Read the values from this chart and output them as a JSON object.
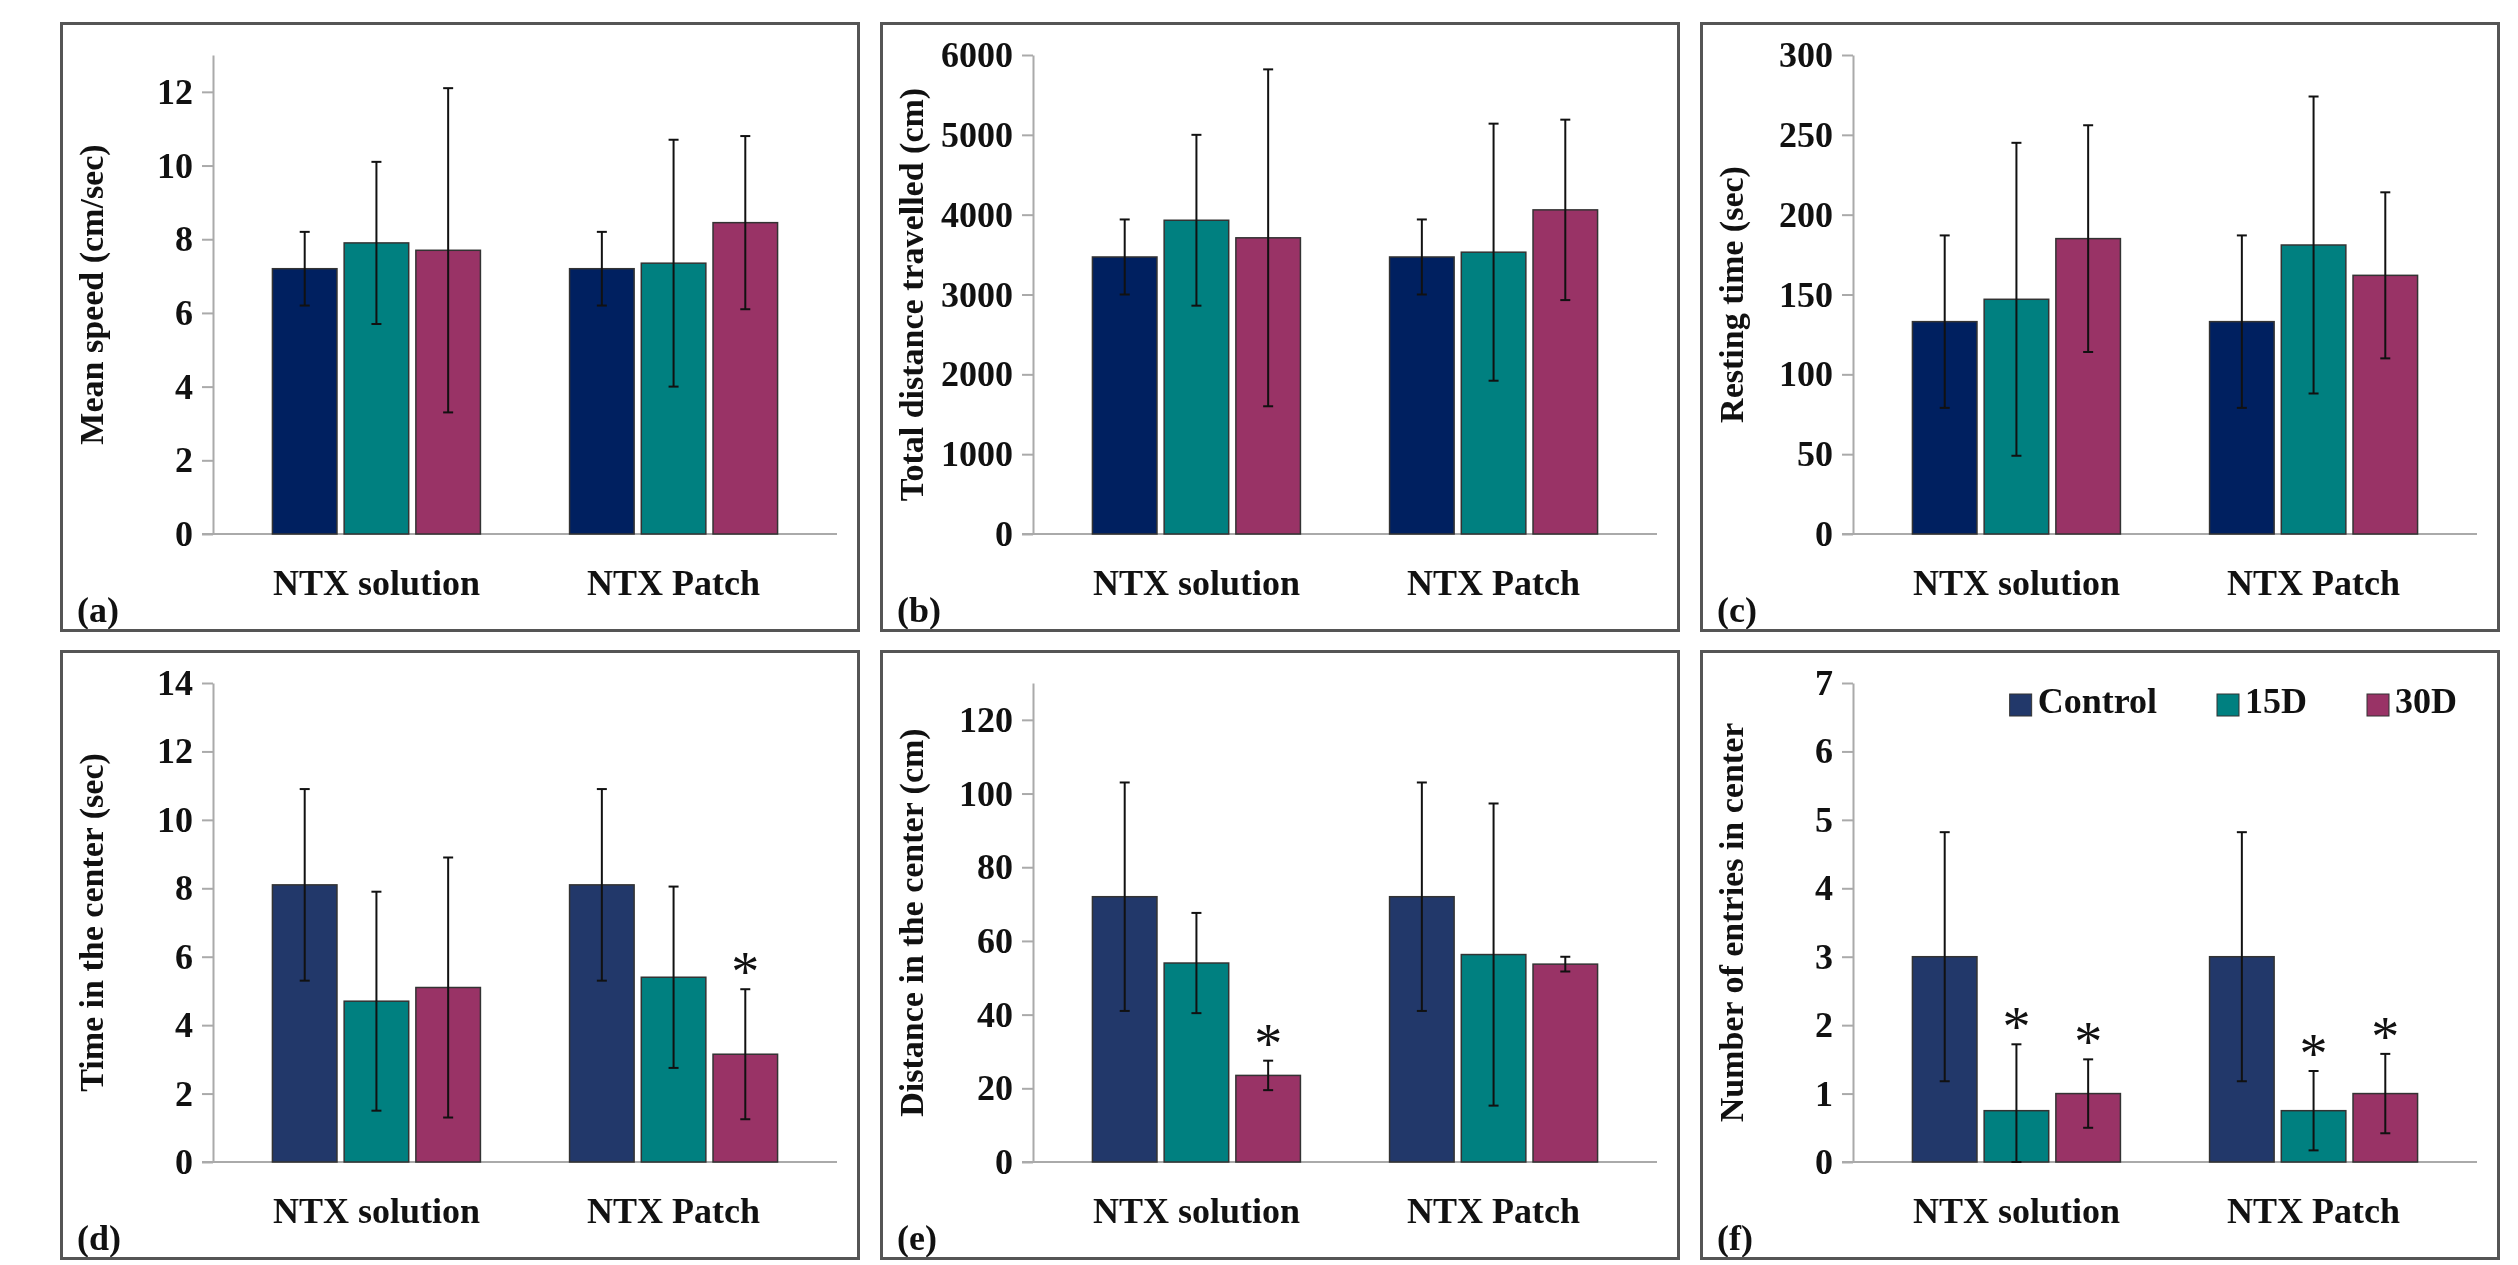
{
  "chart_data": [
    {
      "type": "bar",
      "categories": [
        "NTX solution",
        "NTX Patch"
      ],
      "ylabel": "Mean speed (cm/sec)",
      "ylim": [
        0,
        13
      ],
      "yticks": [
        0,
        2,
        4,
        6,
        8,
        10,
        12
      ],
      "grid": false,
      "legend": false,
      "annotations": [
        "(a)"
      ],
      "series": [
        {
          "color": "#002060",
          "values": [
            7.2,
            7.2
          ],
          "errors": [
            1.0,
            1.0
          ]
        },
        {
          "color": "#008080",
          "values": [
            7.9,
            7.35
          ],
          "errors": [
            2.2,
            3.35
          ]
        },
        {
          "color": "#993366",
          "values": [
            7.7,
            8.45
          ],
          "errors": [
            4.4,
            2.35
          ]
        }
      ]
    },
    {
      "type": "bar",
      "categories": [
        "NTX solution",
        "NTX Patch"
      ],
      "ylabel": "Total distance travelled (cm)",
      "ylim": [
        0,
        6000
      ],
      "yticks": [
        0,
        1000,
        2000,
        3000,
        4000,
        5000,
        6000
      ],
      "grid": false,
      "legend": false,
      "annotations": [
        "(b)"
      ],
      "series": [
        {
          "color": "#002060",
          "values": [
            3470,
            3470
          ],
          "errors": [
            470,
            470
          ]
        },
        {
          "color": "#008080",
          "values": [
            3930,
            3530
          ],
          "errors": [
            1070,
            1610
          ]
        },
        {
          "color": "#993366",
          "values": [
            3710,
            4060
          ],
          "errors": [
            2110,
            1130
          ]
        }
      ]
    },
    {
      "type": "bar",
      "categories": [
        "NTX solution",
        "NTX Patch"
      ],
      "ylabel": "Resting time (sec)",
      "ylim": [
        0,
        300
      ],
      "yticks": [
        0,
        50,
        100,
        150,
        200,
        250,
        300
      ],
      "grid": false,
      "legend": false,
      "annotations": [
        "(c)"
      ],
      "series": [
        {
          "color": "#002060",
          "values": [
            133,
            133
          ],
          "errors": [
            54,
            54
          ]
        },
        {
          "color": "#008080",
          "values": [
            147,
            181
          ],
          "errors": [
            98,
            93
          ]
        },
        {
          "color": "#993366",
          "values": [
            185,
            162
          ],
          "errors": [
            71,
            52
          ]
        }
      ]
    },
    {
      "type": "bar",
      "categories": [
        "NTX solution",
        "NTX Patch"
      ],
      "ylabel": "Time in the center (sec)",
      "ylim": [
        0,
        14
      ],
      "yticks": [
        0,
        2,
        4,
        6,
        8,
        10,
        12,
        14
      ],
      "grid": false,
      "legend": false,
      "annotations": [
        "(d)"
      ],
      "series": [
        {
          "color": "#22386a",
          "values": [
            8.1,
            8.1
          ],
          "errors": [
            2.8,
            2.8
          ]
        },
        {
          "color": "#008080",
          "values": [
            4.7,
            5.4
          ],
          "errors": [
            3.2,
            2.65
          ]
        },
        {
          "color": "#993366",
          "values": [
            5.1,
            3.15
          ],
          "errors": [
            3.8,
            1.9
          ],
          "value_labels": [
            null,
            "*"
          ]
        }
      ]
    },
    {
      "type": "bar",
      "categories": [
        "NTX solution",
        "NTX Patch"
      ],
      "ylabel": "Distance in the center (cm)",
      "ylim": [
        0,
        130
      ],
      "yticks": [
        0,
        20,
        40,
        60,
        80,
        100,
        120
      ],
      "grid": false,
      "legend": false,
      "annotations": [
        "(e)"
      ],
      "series": [
        {
          "color": "#22386a",
          "values": [
            72,
            72
          ],
          "errors": [
            31,
            31
          ]
        },
        {
          "color": "#008080",
          "values": [
            54,
            56.3
          ],
          "errors": [
            13.6,
            41
          ]
        },
        {
          "color": "#993366",
          "values": [
            23.5,
            53.7
          ],
          "errors": [
            4,
            2
          ],
          "value_labels": [
            "*",
            null
          ]
        }
      ]
    },
    {
      "type": "bar",
      "categories": [
        "NTX solution",
        "NTX Patch"
      ],
      "ylabel": "Number of entries in center",
      "ylim": [
        0,
        7
      ],
      "yticks": [
        0,
        1,
        2,
        3,
        4,
        5,
        6,
        7
      ],
      "grid": false,
      "legend": "top right",
      "annotations": [
        "(f)"
      ],
      "series": [
        {
          "name": "Control",
          "color": "#22386a",
          "values": [
            3.0,
            3.0
          ],
          "errors": [
            1.82,
            1.82
          ]
        },
        {
          "name": "15D",
          "color": "#008080",
          "values": [
            0.75,
            0.75
          ],
          "errors": [
            [
              0,
              1.72
            ],
            [
              0.17,
              1.33
            ]
          ],
          "value_labels": [
            "*",
            "*"
          ]
        },
        {
          "name": "30D",
          "color": "#993366",
          "values": [
            1.0,
            1.0
          ],
          "errors": [
            0.5,
            0.58
          ],
          "value_labels": [
            "*",
            "*"
          ]
        }
      ]
    }
  ]
}
